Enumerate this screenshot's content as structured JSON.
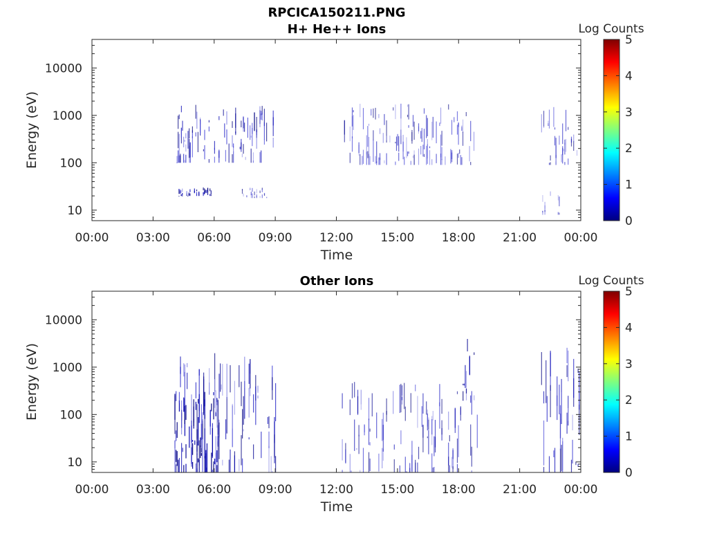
{
  "figure_title": "RPCICA150211.PNG",
  "colorbar": {
    "label": "Log Counts",
    "ticks": [
      "0",
      "1",
      "2",
      "3",
      "4",
      "5"
    ],
    "range": [
      0,
      5
    ],
    "colormap": [
      "#00007f",
      "#0000ff",
      "#007fff",
      "#00ffff",
      "#7fff7f",
      "#ffff00",
      "#ff7f00",
      "#ff0000",
      "#7f0000"
    ]
  },
  "chart_data": [
    {
      "type": "heatmap",
      "title": "H+ He++ Ions",
      "xlabel": "Time",
      "ylabel": "Energy (eV)",
      "x_ticks": [
        "00:00",
        "03:00",
        "06:00",
        "09:00",
        "12:00",
        "15:00",
        "18:00",
        "21:00",
        "00:00"
      ],
      "y_ticks": [
        "10",
        "100",
        "1000",
        "10000"
      ],
      "xlim_hours": [
        0,
        24
      ],
      "ylim": [
        6,
        40000
      ],
      "yscale": "log",
      "color_scale": "log counts 0-5",
      "activity_blocks": [
        {
          "t0": 4.1,
          "t1": 9.0,
          "e0": 100,
          "e1": 1700,
          "level": 0.45
        },
        {
          "t0": 4.2,
          "t1": 6.0,
          "e0": 20,
          "e1": 30,
          "level": 0.7
        },
        {
          "t0": 7.2,
          "t1": 8.7,
          "e0": 18,
          "e1": 30,
          "level": 0.25
        },
        {
          "t0": 12.0,
          "t1": 18.8,
          "e0": 90,
          "e1": 1800,
          "level": 0.3
        },
        {
          "t0": 22.0,
          "t1": 24.0,
          "e0": 90,
          "e1": 1500,
          "level": 0.3
        },
        {
          "t0": 22.0,
          "t1": 23.0,
          "e0": 8,
          "e1": 30,
          "level": 0.15
        }
      ]
    },
    {
      "type": "heatmap",
      "title": "Other Ions",
      "xlabel": "Time",
      "ylabel": "Energy (eV)",
      "x_ticks": [
        "00:00",
        "03:00",
        "06:00",
        "09:00",
        "12:00",
        "15:00",
        "18:00",
        "21:00",
        "00:00"
      ],
      "y_ticks": [
        "10",
        "100",
        "1000",
        "10000"
      ],
      "xlim_hours": [
        0,
        24
      ],
      "ylim": [
        6,
        40000
      ],
      "yscale": "log",
      "color_scale": "log counts 0-5",
      "activity_blocks": [
        {
          "t0": 4.0,
          "t1": 6.2,
          "e0": 6,
          "e1": 300,
          "level": 0.9
        },
        {
          "t0": 4.0,
          "t1": 9.0,
          "e0": 6,
          "e1": 2000,
          "level": 0.5
        },
        {
          "t0": 12.0,
          "t1": 18.9,
          "e0": 6,
          "e1": 500,
          "level": 0.35
        },
        {
          "t0": 18.2,
          "t1": 18.9,
          "e0": 200,
          "e1": 4000,
          "level": 0.6
        },
        {
          "t0": 22.0,
          "t1": 24.0,
          "e0": 6,
          "e1": 3000,
          "level": 0.45
        }
      ]
    }
  ]
}
